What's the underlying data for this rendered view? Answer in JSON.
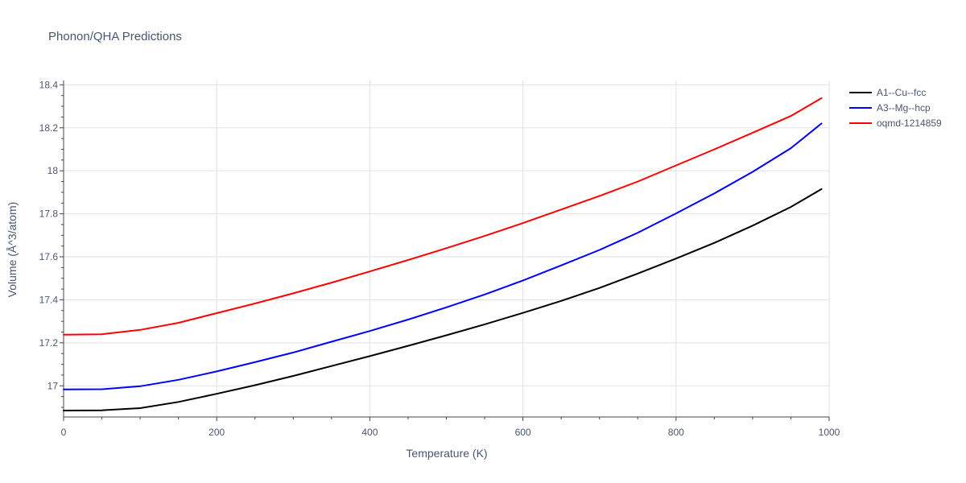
{
  "chart_data": {
    "type": "line",
    "title": "Phonon/QHA Predictions",
    "xlabel": "Temperature (K)",
    "ylabel": "Volume (Å^3/atom)",
    "xlim": [
      0,
      1000
    ],
    "ylim": [
      16.855,
      18.42
    ],
    "xticks": [
      0,
      200,
      400,
      600,
      800,
      1000
    ],
    "xtick_labels": [
      "0",
      "200",
      "400",
      "600",
      "800",
      "1000"
    ],
    "yticks": [
      17.0,
      17.2,
      17.4,
      17.6,
      17.8,
      18.0,
      18.2,
      18.4
    ],
    "ytick_labels": [
      "17",
      "17.2",
      "17.4",
      "17.6",
      "17.8",
      "18",
      "18.2",
      "18.4"
    ],
    "grid": true,
    "legend_position": "top-right",
    "series": [
      {
        "name": "A1--Cu--fcc",
        "color": "#000000",
        "x": [
          0,
          50,
          100,
          150,
          200,
          250,
          300,
          350,
          400,
          450,
          500,
          550,
          600,
          650,
          700,
          750,
          800,
          850,
          900,
          950,
          990
        ],
        "y": [
          16.885,
          16.886,
          16.896,
          16.925,
          16.963,
          17.003,
          17.046,
          17.092,
          17.138,
          17.186,
          17.235,
          17.286,
          17.339,
          17.395,
          17.455,
          17.522,
          17.592,
          17.665,
          17.745,
          17.832,
          17.915
        ]
      },
      {
        "name": "A3--Mg--hcp",
        "color": "#0000ff",
        "x": [
          0,
          50,
          100,
          150,
          200,
          250,
          300,
          350,
          400,
          450,
          500,
          550,
          600,
          650,
          700,
          750,
          800,
          850,
          900,
          950,
          990
        ],
        "y": [
          16.983,
          16.984,
          16.998,
          17.028,
          17.067,
          17.11,
          17.155,
          17.205,
          17.255,
          17.308,
          17.365,
          17.425,
          17.49,
          17.56,
          17.632,
          17.712,
          17.802,
          17.895,
          17.995,
          18.105,
          18.22
        ]
      },
      {
        "name": "oqmd-1214859",
        "color": "#ff0000",
        "x": [
          0,
          50,
          100,
          150,
          200,
          250,
          300,
          350,
          400,
          450,
          500,
          550,
          600,
          650,
          700,
          750,
          800,
          850,
          900,
          950,
          990
        ],
        "y": [
          17.238,
          17.24,
          17.26,
          17.293,
          17.338,
          17.383,
          17.43,
          17.48,
          17.532,
          17.585,
          17.64,
          17.697,
          17.757,
          17.82,
          17.883,
          17.95,
          18.025,
          18.1,
          18.177,
          18.255,
          18.338
        ]
      }
    ]
  }
}
